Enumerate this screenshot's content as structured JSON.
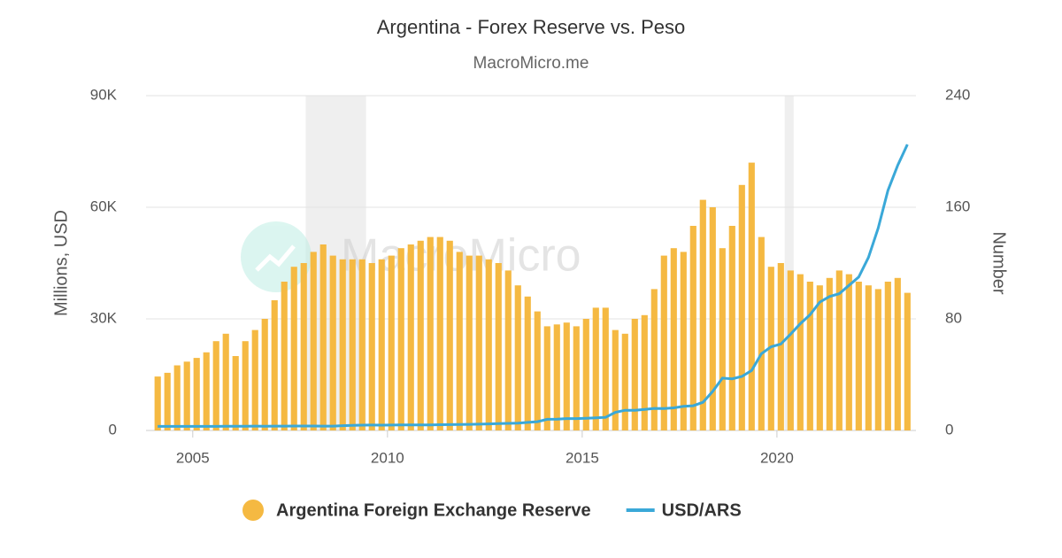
{
  "chart_data": {
    "type": "bar-line",
    "title": "Argentina - Forex Reserve vs. Peso",
    "subtitle": "MacroMicro.me",
    "watermark": "MacroMicro",
    "y_label": "Millions, USD",
    "y2_label": "Number",
    "x": [
      2004.1,
      2004.35,
      2004.6,
      2004.85,
      2005.1,
      2005.35,
      2005.6,
      2005.85,
      2006.1,
      2006.35,
      2006.6,
      2006.85,
      2007.1,
      2007.35,
      2007.6,
      2007.85,
      2008.1,
      2008.35,
      2008.6,
      2008.85,
      2009.1,
      2009.35,
      2009.6,
      2009.85,
      2010.1,
      2010.35,
      2010.6,
      2010.85,
      2011.1,
      2011.35,
      2011.6,
      2011.85,
      2012.1,
      2012.35,
      2012.6,
      2012.85,
      2013.1,
      2013.35,
      2013.6,
      2013.85,
      2014.1,
      2014.35,
      2014.6,
      2014.85,
      2015.1,
      2015.35,
      2015.6,
      2015.85,
      2016.1,
      2016.35,
      2016.6,
      2016.85,
      2017.1,
      2017.35,
      2017.6,
      2017.85,
      2018.1,
      2018.35,
      2018.6,
      2018.85,
      2019.1,
      2019.35,
      2019.6,
      2019.85,
      2020.1,
      2020.35,
      2020.6,
      2020.85,
      2021.1,
      2021.35,
      2021.6,
      2021.85,
      2022.1,
      2022.35,
      2022.6,
      2022.85,
      2023.1,
      2023.35
    ],
    "series": [
      {
        "name": "Argentina Foreign Exchange Reserve",
        "color": "#f5b942",
        "axis": "y",
        "values": [
          14500,
          15500,
          17500,
          18500,
          19500,
          21000,
          24000,
          26000,
          20000,
          24000,
          27000,
          30000,
          35000,
          40000,
          44000,
          45000,
          48000,
          50000,
          47000,
          46000,
          46000,
          46000,
          45000,
          46000,
          47000,
          49000,
          50000,
          51000,
          52000,
          52000,
          51000,
          48000,
          47000,
          47000,
          46000,
          45000,
          43000,
          39000,
          36000,
          32000,
          28000,
          28500,
          29000,
          28000,
          30000,
          33000,
          33000,
          27000,
          26000,
          30000,
          31000,
          38000,
          47000,
          49000,
          48000,
          55000,
          62000,
          60000,
          49000,
          55000,
          66000,
          72000,
          52000,
          44000,
          45000,
          43000,
          42000,
          40000,
          39000,
          41000,
          43000,
          42000,
          40000,
          39000,
          38000,
          40000,
          41000,
          37000
        ]
      },
      {
        "name": "USD/ARS",
        "color": "#3aa8d8",
        "axis": "y2",
        "values": [
          2.9,
          2.9,
          2.95,
          2.95,
          2.9,
          2.9,
          2.9,
          3.0,
          3.05,
          3.06,
          3.08,
          3.07,
          3.1,
          3.08,
          3.15,
          3.15,
          3.15,
          3.1,
          3.1,
          3.4,
          3.7,
          3.8,
          3.85,
          3.8,
          3.85,
          3.93,
          3.96,
          3.98,
          4.0,
          4.1,
          4.2,
          4.3,
          4.4,
          4.5,
          4.7,
          4.9,
          5.1,
          5.3,
          5.8,
          6.3,
          8.0,
          8.1,
          8.5,
          8.5,
          8.7,
          9.0,
          9.4,
          13.0,
          14.5,
          14.5,
          15.1,
          15.8,
          15.7,
          16.2,
          17.3,
          17.7,
          20.2,
          28.0,
          37.5,
          37.0,
          38.7,
          43.0,
          55.0,
          60.0,
          62.0,
          69.0,
          76.5,
          83.0,
          92.0,
          96.0,
          98.0,
          104.0,
          110.0,
          124.0,
          145.0,
          172.0,
          190.0,
          205.0
        ]
      }
    ],
    "shaded_ranges": [
      [
        2007.9,
        2009.45
      ],
      [
        2020.2,
        2020.43
      ]
    ],
    "xlim": [
      2003.8,
      2023.57
    ],
    "xticks": [
      2005,
      2010,
      2015,
      2020
    ],
    "ylim": [
      0,
      90000
    ],
    "yticks": [
      0,
      {
        "value": 30000,
        "label": "30K"
      },
      {
        "value": 60000,
        "label": "60K"
      },
      {
        "value": 90000,
        "label": "90K"
      }
    ],
    "y2lim": [
      0,
      240
    ],
    "y2ticks": [
      0,
      80,
      160,
      240
    ],
    "grid": true
  }
}
